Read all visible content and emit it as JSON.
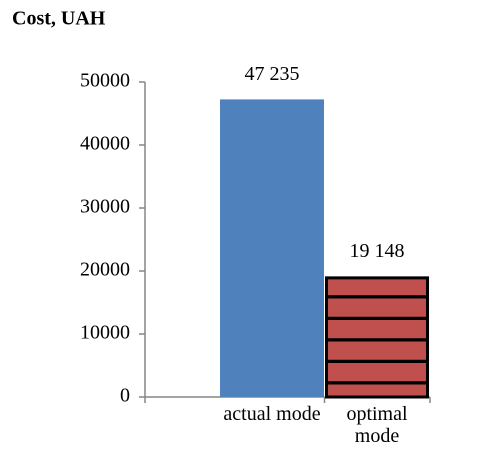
{
  "chart_data": {
    "type": "bar",
    "title": "Cost, UAH",
    "categories": [
      "actual mode",
      "optimal mode"
    ],
    "values": [
      47235,
      19148
    ],
    "value_labels": [
      "47 235",
      "19 148"
    ],
    "colors": [
      "#4f81bd",
      "#c0504d"
    ],
    "hatch": [
      false,
      true
    ],
    "ylim": [
      0,
      50000
    ],
    "yticks": [
      0,
      10000,
      20000,
      30000,
      40000,
      50000
    ]
  }
}
